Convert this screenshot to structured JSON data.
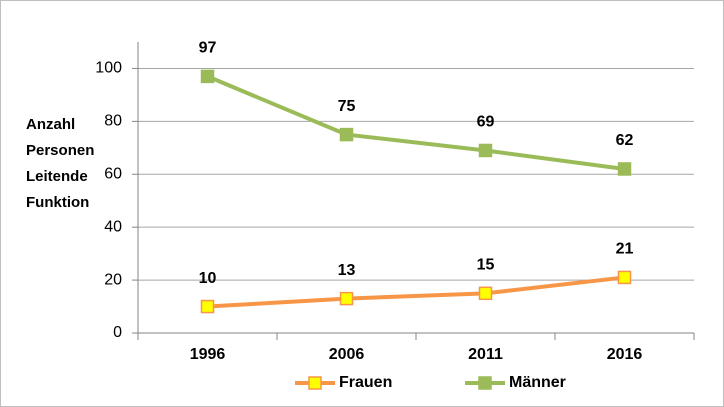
{
  "chart_data": {
    "type": "line",
    "y_label": "Anzahl Personen Leitende Funktion",
    "categories": [
      "1996",
      "2006",
      "2011",
      "2016"
    ],
    "series": [
      {
        "name": "Frauen",
        "color": "#f79646",
        "marker_color": "#ffff00",
        "values": [
          10,
          13,
          15,
          21
        ]
      },
      {
        "name": "Männer",
        "color": "#9bbb59",
        "marker_color": "#9bbb59",
        "values": [
          97,
          75,
          69,
          62
        ]
      }
    ],
    "ylim": [
      0,
      110
    ],
    "yticks": [
      0,
      20,
      40,
      60,
      80,
      100
    ],
    "grid": true,
    "legend": "bottom"
  }
}
